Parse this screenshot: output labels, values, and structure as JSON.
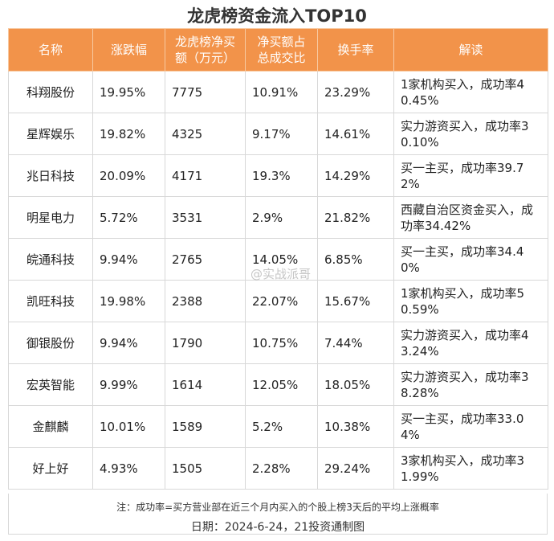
{
  "title": "龙虎榜资金流入TOP10",
  "table": {
    "header": [
      "名称",
      "涨跌幅",
      "龙虎榜净买额（万元）",
      "净买额占总成交比",
      "换手率",
      "解读"
    ],
    "rows": [
      [
        "科翔股份",
        "19.95%",
        "7775",
        "10.91%",
        "23.29%",
        "1家机构买入，成功率40.45%"
      ],
      [
        "星辉娱乐",
        "19.82%",
        "4325",
        "9.17%",
        "14.61%",
        "实力游资买入，成功率30.10%"
      ],
      [
        "兆日科技",
        "20.09%",
        "4171",
        "19.3%",
        "14.29%",
        "买一主买，成功率39.72%"
      ],
      [
        "明星电力",
        "5.72%",
        "3531",
        "2.9%",
        "21.82%",
        "西藏自治区资金买入，成功率34.42%"
      ],
      [
        "皖通科技",
        "9.94%",
        "2765",
        "14.05%",
        "6.85%",
        "买一主买，成功率34.40%"
      ],
      [
        "凯旺科技",
        "19.98%",
        "2388",
        "22.07%",
        "15.67%",
        "1家机构买入，成功率50.59%"
      ],
      [
        "御银股份",
        "9.94%",
        "1790",
        "10.75%",
        "7.44%",
        "实力游资买入，成功率43.24%"
      ],
      [
        "宏英智能",
        "9.99%",
        "1614",
        "12.05%",
        "18.05%",
        "实力游资买入，成功率38.28%"
      ],
      [
        "金麒麟",
        "10.01%",
        "1589",
        "5.2%",
        "10.38%",
        "买一主买，成功率33.04%"
      ],
      [
        "好上好",
        "4.93%",
        "1505",
        "2.28%",
        "29.24%",
        "3家机构买入，成功率31.99%"
      ]
    ]
  },
  "watermark": "@实战派哥",
  "footer": {
    "note": "注：成功率=买方营业部在近三个月内买入的个股上榜3天后的平均上涨概率",
    "date": "日期：2024-6-24，21投资通制图"
  }
}
